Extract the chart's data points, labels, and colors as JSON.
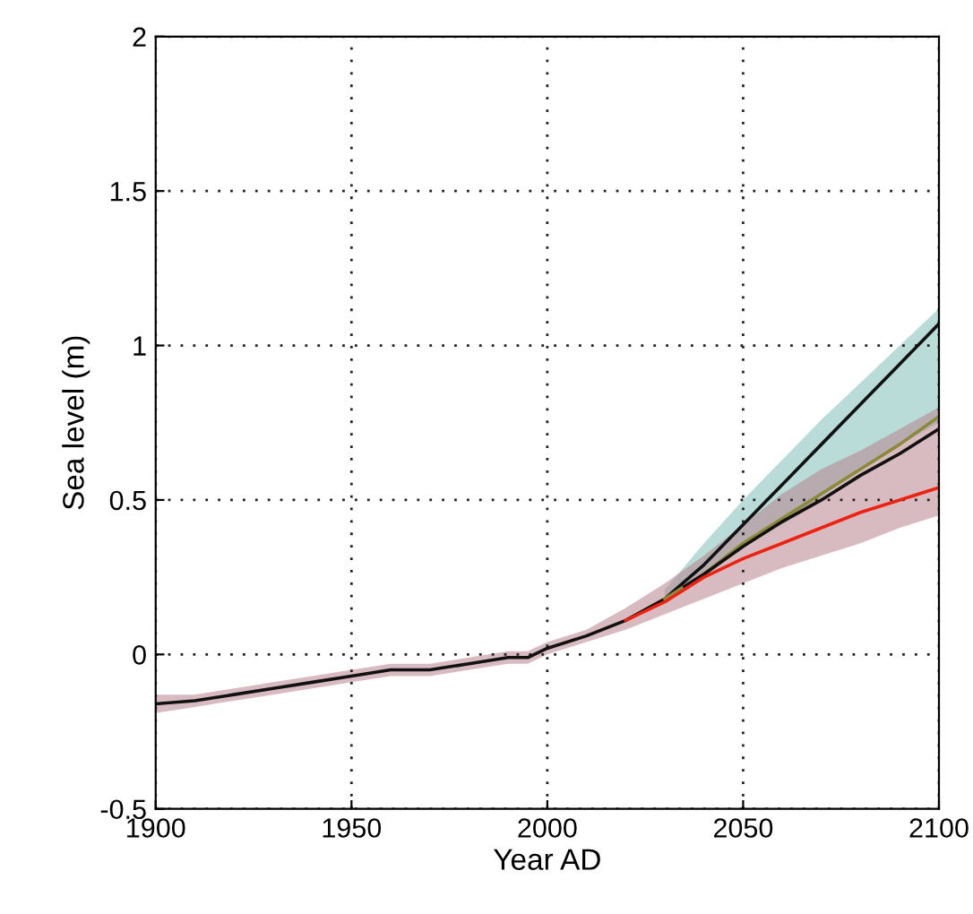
{
  "chart_data": {
    "type": "line",
    "xlabel": "Year AD",
    "ylabel": "Sea level (m)",
    "xlim": [
      1900,
      2100
    ],
    "ylim": [
      -0.5,
      2
    ],
    "xticks": [
      1900,
      1950,
      2000,
      2050,
      2100
    ],
    "yticks": [
      -0.5,
      0,
      0.5,
      1,
      1.5,
      2
    ],
    "grid": true,
    "marker": "none",
    "line_style": "solid",
    "series": [
      {
        "color": "#111111",
        "x": [
          1900,
          1910,
          1920,
          1930,
          1940,
          1950,
          1960,
          1965,
          1970,
          1980,
          1990,
          1995,
          2000,
          2010,
          2020,
          2030,
          2040,
          2050,
          2060,
          2070,
          2080,
          2090,
          2100
        ],
        "values": [
          -0.16,
          -0.15,
          -0.13,
          -0.11,
          -0.09,
          -0.07,
          -0.05,
          -0.05,
          -0.05,
          -0.03,
          -0.01,
          -0.01,
          0.02,
          0.06,
          0.11,
          0.18,
          0.29,
          0.42,
          0.55,
          0.68,
          0.81,
          0.94,
          1.07
        ],
        "lower": [
          -0.19,
          -0.17,
          -0.15,
          -0.13,
          -0.11,
          -0.09,
          -0.07,
          -0.07,
          -0.07,
          -0.05,
          -0.03,
          -0.03,
          0.0,
          0.04,
          0.08,
          null,
          null,
          null,
          null,
          null,
          null,
          null,
          null
        ],
        "upper": [
          -0.13,
          -0.13,
          -0.11,
          -0.09,
          -0.07,
          -0.05,
          -0.03,
          -0.03,
          -0.03,
          -0.01,
          0.01,
          0.01,
          0.04,
          0.08,
          0.15,
          null,
          null,
          null,
          null,
          null,
          null,
          null,
          null
        ]
      },
      {
        "color": "#8a8a3a",
        "x": [
          2030,
          2040,
          2050,
          2060,
          2070,
          2080,
          2090,
          2100
        ],
        "values": [
          0.18,
          0.26,
          0.36,
          0.44,
          0.52,
          0.6,
          0.68,
          0.77
        ],
        "lower": [
          0.17,
          0.25,
          0.35,
          0.42,
          0.51,
          0.6,
          0.68,
          0.75
        ],
        "upper": [
          0.21,
          0.36,
          0.5,
          0.63,
          0.76,
          0.88,
          1.0,
          1.12
        ]
      },
      {
        "color": "#111111",
        "x": [
          2035,
          2040,
          2050,
          2060,
          2070,
          2080,
          2090,
          2100
        ],
        "values": [
          0.22,
          0.26,
          0.35,
          0.43,
          0.5,
          0.58,
          0.65,
          0.73
        ]
      },
      {
        "color": "#ee2211",
        "x": [
          2020,
          2030,
          2040,
          2050,
          2060,
          2070,
          2080,
          2090,
          2100
        ],
        "values": [
          0.11,
          0.17,
          0.25,
          0.31,
          0.36,
          0.41,
          0.46,
          0.5,
          0.54
        ],
        "lower": [
          0.08,
          0.13,
          0.18,
          0.23,
          0.28,
          0.32,
          0.36,
          0.41,
          0.45
        ],
        "upper": [
          0.15,
          0.23,
          0.32,
          0.42,
          0.52,
          0.6,
          0.66,
          0.73,
          0.8
        ]
      }
    ]
  }
}
